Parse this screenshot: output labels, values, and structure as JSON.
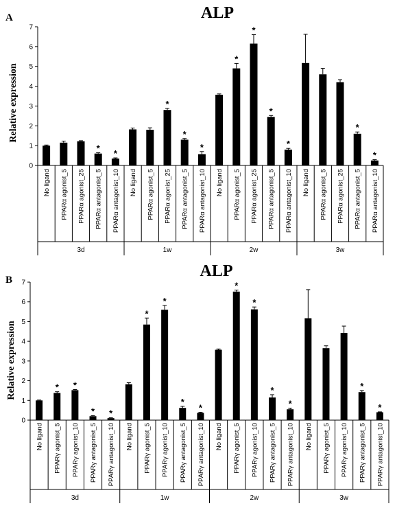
{
  "chart_data": [
    {
      "type": "bar",
      "panel": "A",
      "title": "ALP",
      "ylabel": "Relative expression",
      "ylim": [
        0,
        7
      ],
      "yticks": [
        0,
        1,
        2,
        3,
        4,
        5,
        6,
        7
      ],
      "groups": [
        {
          "label": "3d",
          "categories": [
            "No ligand",
            "PPARα agonist_5",
            "PPARα agonist_25",
            "PPARα antagonist_5",
            "PPARα antagonist_10"
          ],
          "values": [
            1.0,
            1.15,
            1.22,
            0.6,
            0.35
          ],
          "errors": [
            0.03,
            0.08,
            0.03,
            0.04,
            0.03
          ],
          "significant": [
            false,
            false,
            false,
            true,
            true
          ]
        },
        {
          "label": "1w",
          "categories": [
            "No ligand",
            "PPARα agonist_5",
            "PPARα agonist_25",
            "PPARα antagonist_5",
            "PPARα antagonist_10"
          ],
          "values": [
            1.82,
            1.8,
            2.8,
            1.3,
            0.57
          ],
          "errors": [
            0.07,
            0.1,
            0.08,
            0.06,
            0.13
          ],
          "significant": [
            false,
            false,
            true,
            true,
            true
          ]
        },
        {
          "label": "2w",
          "categories": [
            "No ligand",
            "PPARα agonist_5",
            "PPARα agonist_25",
            "PPARα antagonist_5",
            "PPARα antagonist_10"
          ],
          "values": [
            3.57,
            4.9,
            6.15,
            2.45,
            0.8
          ],
          "errors": [
            0.04,
            0.25,
            0.45,
            0.07,
            0.06
          ],
          "significant": [
            false,
            true,
            true,
            true,
            true
          ]
        },
        {
          "label": "3w",
          "categories": [
            "No ligand",
            "PPARα agonist_5",
            "PPARα agonist_25",
            "PPARα antagonist_5",
            "PPARα antagonist_10"
          ],
          "values": [
            5.17,
            4.6,
            4.2,
            1.6,
            0.25
          ],
          "errors": [
            1.45,
            0.3,
            0.13,
            0.09,
            0.04
          ],
          "significant": [
            false,
            false,
            false,
            true,
            true
          ]
        }
      ]
    },
    {
      "type": "bar",
      "panel": "B",
      "title": "ALP",
      "ylabel": "Relative expression",
      "ylim": [
        0,
        7
      ],
      "yticks": [
        0,
        1,
        2,
        3,
        4,
        5,
        6,
        7
      ],
      "groups": [
        {
          "label": "3d",
          "categories": [
            "No ligand",
            "PPARγ agonist_5",
            "PPARγ agonist_10",
            "PPARγ antagonist_5",
            "PPARγ antagonist_10"
          ],
          "values": [
            1.0,
            1.38,
            1.52,
            0.2,
            0.1
          ],
          "errors": [
            0.02,
            0.06,
            0.03,
            0.03,
            0.02
          ],
          "significant": [
            false,
            true,
            true,
            true,
            true
          ]
        },
        {
          "label": "1w",
          "categories": [
            "No ligand",
            "PPARγ agonist_5",
            "PPARγ agonist_10",
            "PPARγ antagonist_5",
            "PPARγ antagonist_10"
          ],
          "values": [
            1.82,
            4.85,
            5.6,
            0.62,
            0.37
          ],
          "errors": [
            0.08,
            0.33,
            0.22,
            0.08,
            0.03
          ],
          "significant": [
            false,
            true,
            true,
            true,
            true
          ]
        },
        {
          "label": "2w",
          "categories": [
            "No ligand",
            "PPARγ agonist_5",
            "PPARγ agonist_10",
            "PPARγ antagonist_5",
            "PPARγ antagonist_10"
          ],
          "values": [
            3.57,
            6.52,
            5.62,
            1.15,
            0.55
          ],
          "errors": [
            0.04,
            0.08,
            0.12,
            0.14,
            0.06
          ],
          "significant": [
            false,
            true,
            true,
            true,
            true
          ]
        },
        {
          "label": "3w",
          "categories": [
            "No ligand",
            "PPARγ agonist_5",
            "PPARγ agonist_10",
            "PPARγ antagonist_5",
            "PPARγ antagonist_10"
          ],
          "values": [
            5.17,
            3.65,
            4.42,
            1.42,
            0.4
          ],
          "errors": [
            1.45,
            0.12,
            0.35,
            0.08,
            0.02
          ],
          "significant": [
            false,
            false,
            false,
            true,
            true
          ]
        }
      ]
    }
  ]
}
